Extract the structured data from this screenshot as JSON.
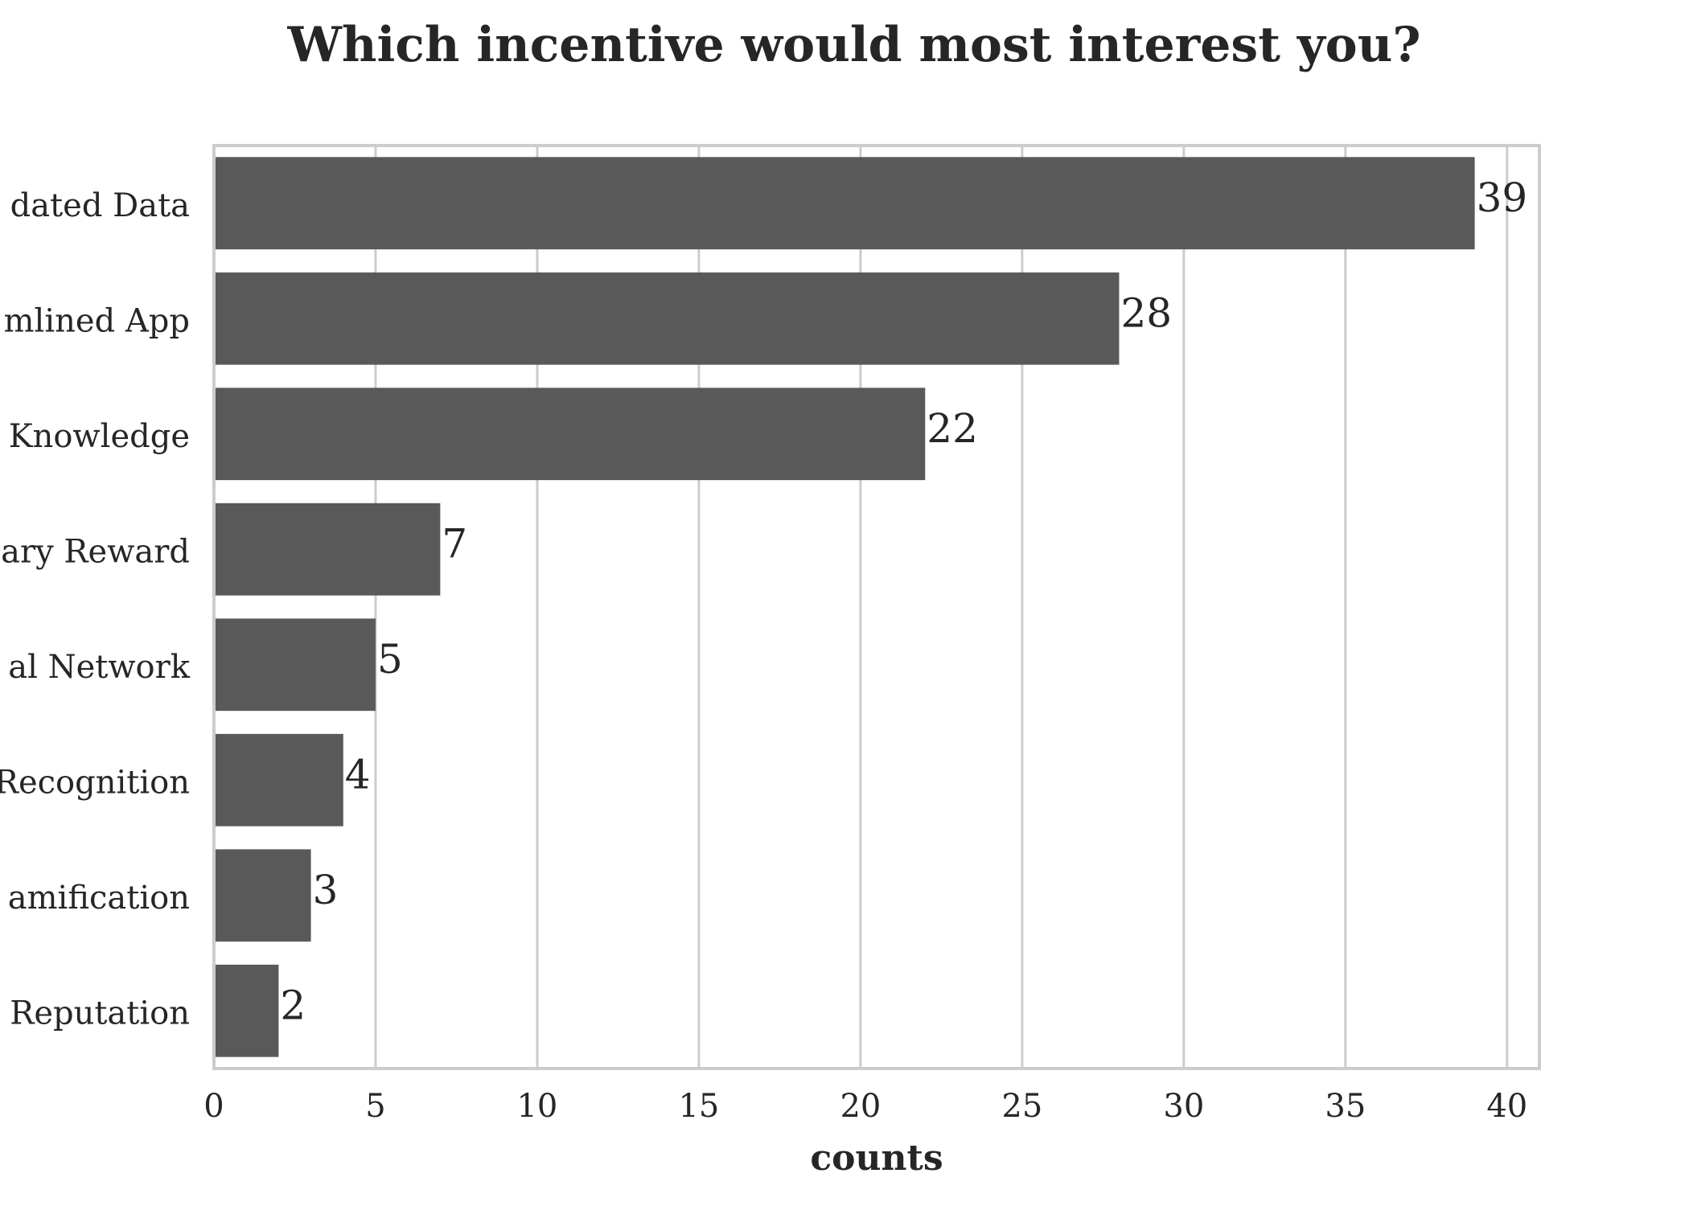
{
  "chart_data": {
    "type": "bar",
    "orientation": "horizontal",
    "title": "Which incentive would most interest you?",
    "xlabel": "counts",
    "ylabel": "",
    "categories": [
      "Updated Data",
      "Streamlined App",
      "Knowledge",
      "Monetary Reward",
      "Professional Network",
      "Recognition",
      "Gamification",
      "Reputation"
    ],
    "category_display": [
      "dated Data",
      "mlined App",
      "Knowledge",
      "ary Reward",
      "al Network",
      "Recognition",
      "amification",
      "Reputation"
    ],
    "values": [
      39,
      28,
      22,
      7,
      5,
      4,
      3,
      2
    ],
    "xlim": [
      0,
      41
    ],
    "xticks": [
      0,
      5,
      10,
      15,
      20,
      25,
      30,
      35,
      40
    ],
    "grid": "vertical",
    "legend": "none",
    "bar_color": "#595959",
    "grid_color": "#cccccc"
  }
}
